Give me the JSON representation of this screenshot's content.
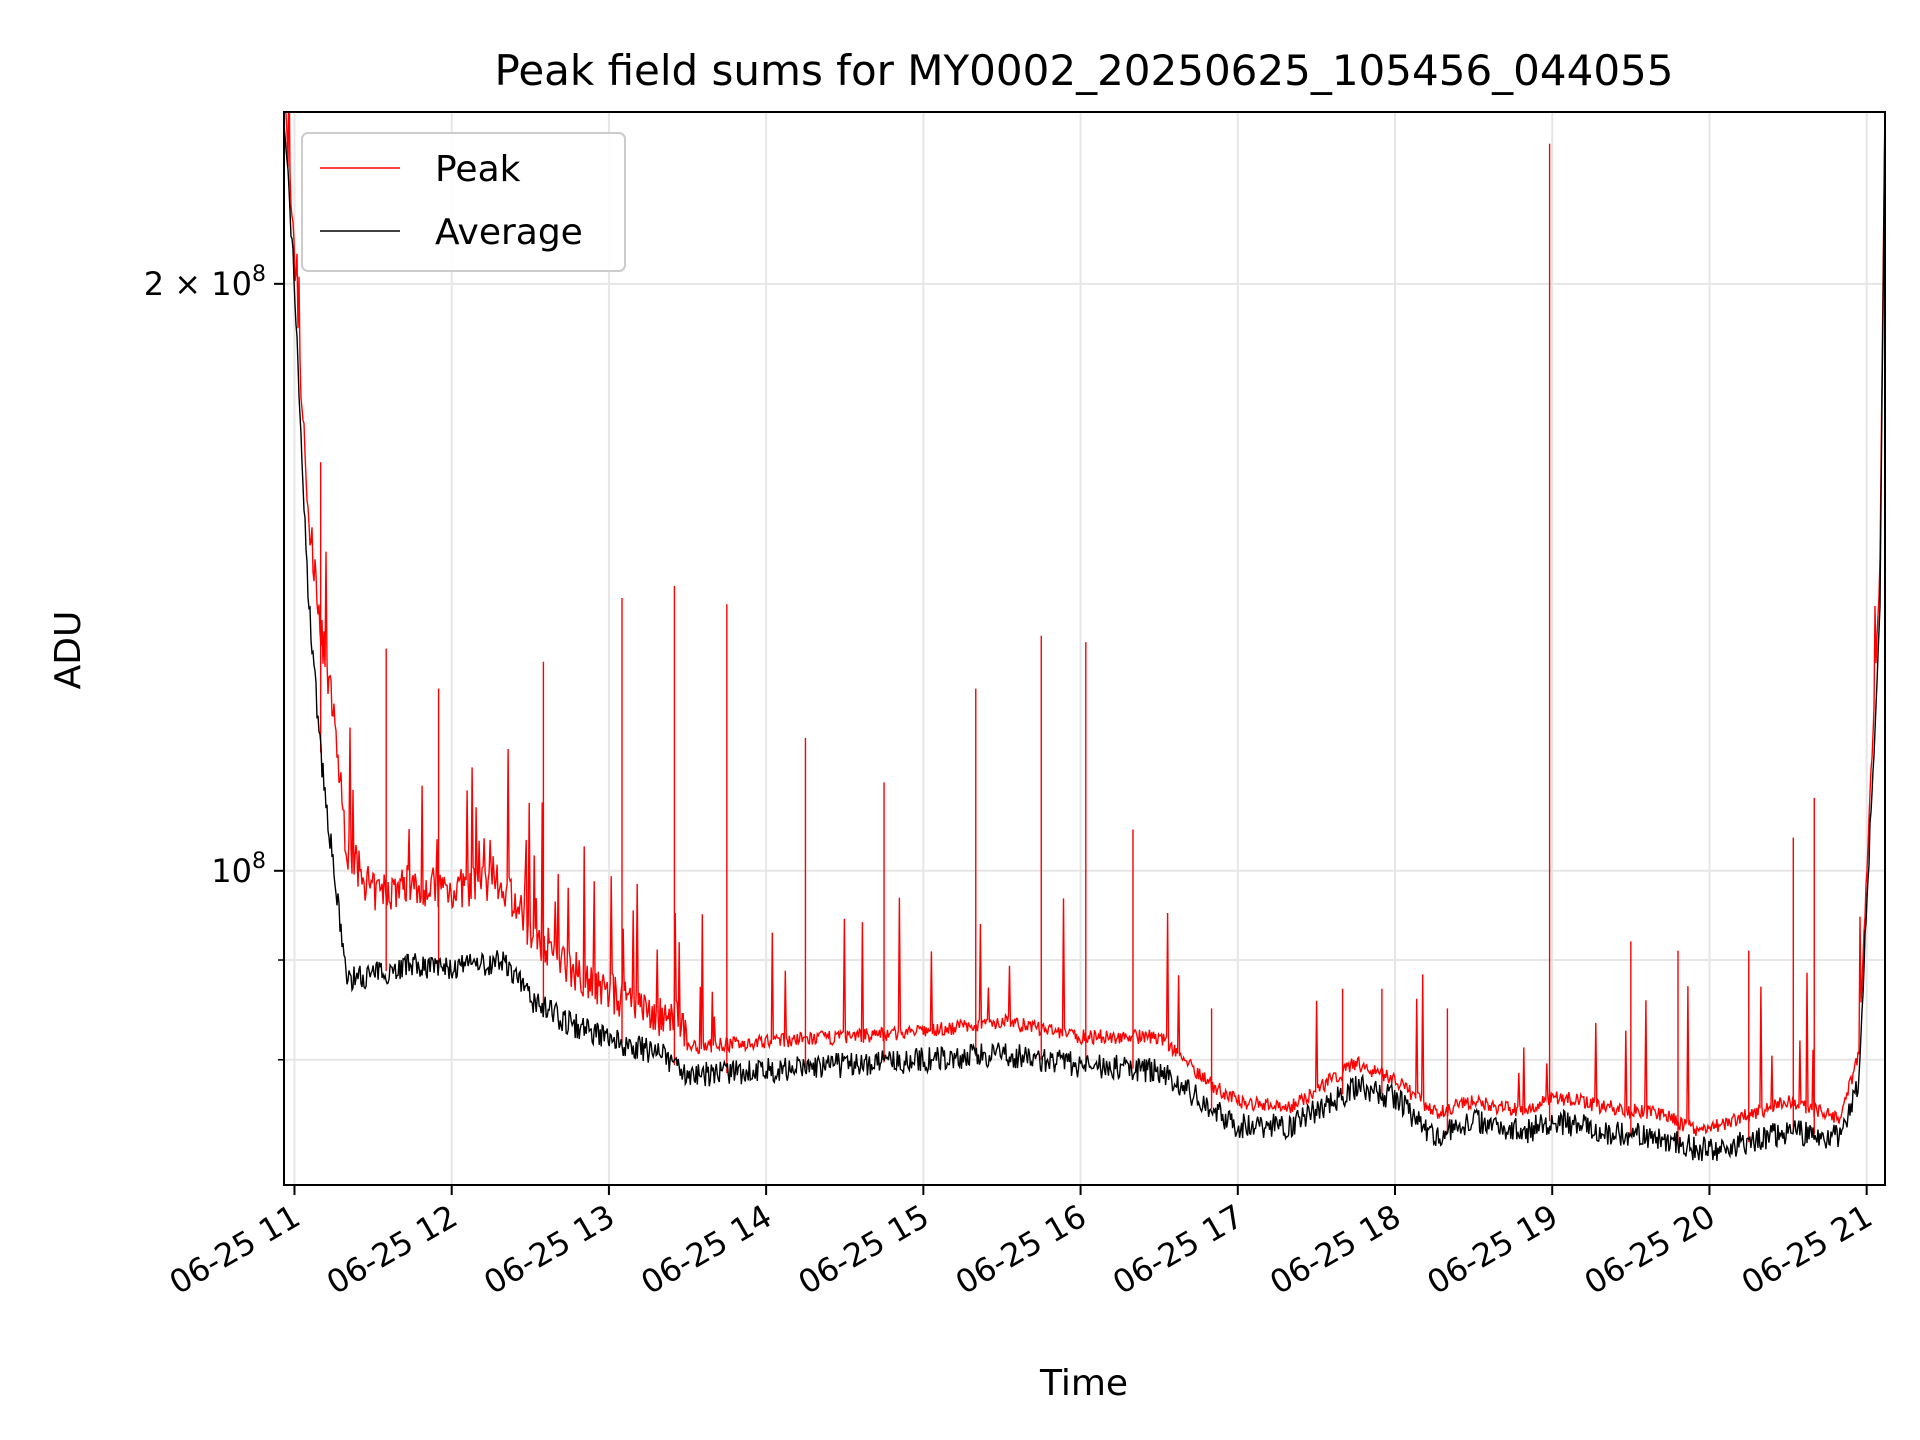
{
  "chart_data": {
    "type": "line",
    "title": "Peak field sums for MY0002_20250625_105456_044055",
    "xlabel": "Time",
    "ylabel": "ADU",
    "y_scale": "log",
    "ylim": [
      69000000,
      245000000
    ],
    "xlim": [
      "2025-06-25 10:56",
      "2025-06-25 21:07"
    ],
    "x_ticks": [
      "06-25 11",
      "06-25 12",
      "06-25 13",
      "06-25 14",
      "06-25 15",
      "06-25 16",
      "06-25 17",
      "06-25 18",
      "06-25 19",
      "06-25 20",
      "06-25 21"
    ],
    "y_ticks": [
      {
        "value": 100000000,
        "label_base": "10",
        "label_exp": "8",
        "label_coef": ""
      },
      {
        "value": 200000000,
        "label_base": "10",
        "label_exp": "8",
        "label_coef": "2 × "
      }
    ],
    "y_minor_ticks": [
      80000000,
      90000000
    ],
    "grid": true,
    "legend_position": "upper-left",
    "series": [
      {
        "name": "Peak",
        "color": "#ff0000",
        "x": [
          "2025-06-25 10:56",
          "2025-06-25 11:00",
          "2025-06-25 11:05",
          "2025-06-25 11:10",
          "2025-06-25 11:15",
          "2025-06-25 11:20",
          "2025-06-25 11:30",
          "2025-06-25 11:45",
          "2025-06-25 12:00",
          "2025-06-25 12:20",
          "2025-06-25 12:30",
          "2025-06-25 12:45",
          "2025-06-25 13:00",
          "2025-06-25 13:20",
          "2025-06-25 13:30",
          "2025-06-25 14:00",
          "2025-06-25 14:30",
          "2025-06-25 15:00",
          "2025-06-25 15:30",
          "2025-06-25 16:00",
          "2025-06-25 16:30",
          "2025-06-25 16:50",
          "2025-06-25 17:00",
          "2025-06-25 17:20",
          "2025-06-25 17:45",
          "2025-06-25 18:00",
          "2025-06-25 18:15",
          "2025-06-25 18:30",
          "2025-06-25 18:50",
          "2025-06-25 19:00",
          "2025-06-25 19:20",
          "2025-06-25 19:40",
          "2025-06-25 19:55",
          "2025-06-25 20:05",
          "2025-06-25 20:30",
          "2025-06-25 20:50",
          "2025-06-25 20:57",
          "2025-06-25 21:05",
          "2025-06-25 21:07"
        ],
        "y": [
          245000000,
          200000000,
          150000000,
          130000000,
          117000000,
          100000000,
          95000000,
          96000000,
          95500000,
          96000000,
          91000000,
          87000000,
          84500000,
          82000000,
          80500000,
          81000000,
          81500000,
          82000000,
          83000000,
          81500000,
          81500000,
          77000000,
          75500000,
          75000000,
          79000000,
          77500000,
          74500000,
          75500000,
          74500000,
          76000000,
          75000000,
          74500000,
          73000000,
          73500000,
          75500000,
          74000000,
          80000000,
          140000000,
          245000000
        ]
      },
      {
        "name": "Average",
        "color": "#000000",
        "x": [
          "2025-06-25 10:56",
          "2025-06-25 11:00",
          "2025-06-25 11:05",
          "2025-06-25 11:10",
          "2025-06-25 11:15",
          "2025-06-25 11:20",
          "2025-06-25 11:30",
          "2025-06-25 11:45",
          "2025-06-25 12:00",
          "2025-06-25 12:20",
          "2025-06-25 12:30",
          "2025-06-25 12:45",
          "2025-06-25 13:00",
          "2025-06-25 13:20",
          "2025-06-25 13:30",
          "2025-06-25 14:00",
          "2025-06-25 14:30",
          "2025-06-25 15:00",
          "2025-06-25 15:30",
          "2025-06-25 16:00",
          "2025-06-25 16:30",
          "2025-06-25 16:50",
          "2025-06-25 17:00",
          "2025-06-25 17:20",
          "2025-06-25 17:45",
          "2025-06-25 18:00",
          "2025-06-25 18:15",
          "2025-06-25 18:30",
          "2025-06-25 18:50",
          "2025-06-25 19:00",
          "2025-06-25 19:20",
          "2025-06-25 19:40",
          "2025-06-25 19:55",
          "2025-06-25 20:05",
          "2025-06-25 20:30",
          "2025-06-25 20:50",
          "2025-06-25 20:57",
          "2025-06-25 21:05",
          "2025-06-25 21:07"
        ],
        "y": [
          245000000,
          200000000,
          140000000,
          115000000,
          100000000,
          88000000,
          88500000,
          89500000,
          89000000,
          90000000,
          86000000,
          83500000,
          82000000,
          80500000,
          78500000,
          79000000,
          79500000,
          80000000,
          80500000,
          79500000,
          79000000,
          75500000,
          74000000,
          74000000,
          77500000,
          76500000,
          73000000,
          74500000,
          73500000,
          74500000,
          73500000,
          73000000,
          72000000,
          72000000,
          73500000,
          73000000,
          78000000,
          135000000,
          245000000
        ]
      }
    ],
    "peak_spikes": {
      "x": [
        "2025-06-25 11:10",
        "2025-06-25 11:35",
        "2025-06-25 11:55",
        "2025-06-25 12:35",
        "2025-06-25 13:05",
        "2025-06-25 13:25",
        "2025-06-25 13:45",
        "2025-06-25 14:15",
        "2025-06-25 14:45",
        "2025-06-25 15:20",
        "2025-06-25 15:45",
        "2025-06-25 16:02",
        "2025-06-25 16:20",
        "2025-06-25 16:50",
        "2025-06-25 17:40",
        "2025-06-25 17:55",
        "2025-06-25 18:20",
        "2025-06-25 18:59",
        "2025-06-25 19:30",
        "2025-06-25 19:48",
        "2025-06-25 20:15",
        "2025-06-25 20:32",
        "2025-06-25 20:40",
        "2025-06-25 21:01"
      ],
      "y": [
        162000000,
        130000000,
        124000000,
        128000000,
        138000000,
        140000000,
        137000000,
        117000000,
        111000000,
        124000000,
        132000000,
        131000000,
        105000000,
        85000000,
        87000000,
        87000000,
        85000000,
        236000000,
        92000000,
        91000000,
        91000000,
        104000000,
        109000000,
        107000000
      ]
    }
  }
}
